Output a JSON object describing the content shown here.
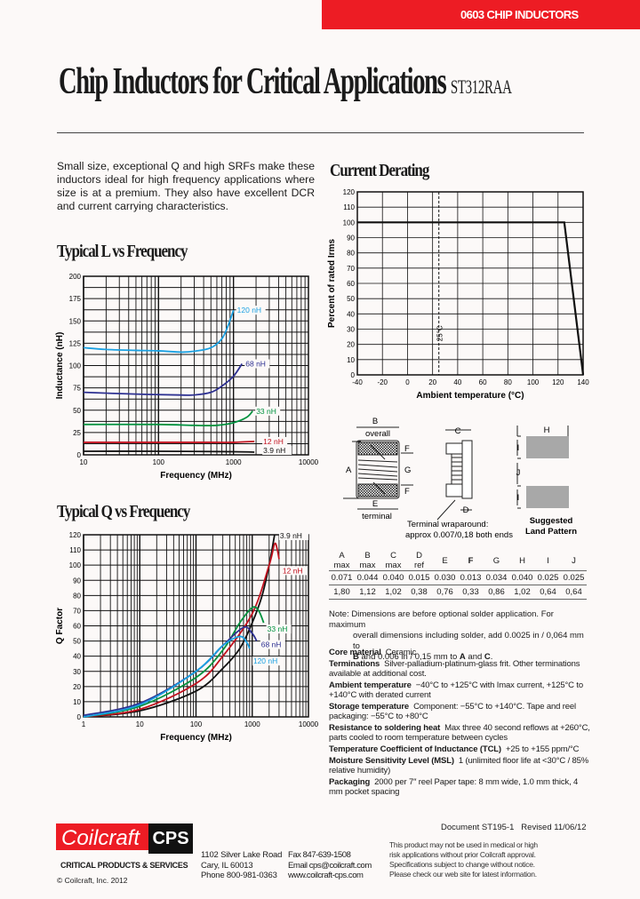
{
  "header": {
    "category": "0603 CHIP INDUCTORS",
    "title": "Chip Inductors for Critical Applications",
    "part_number": "ST312RAA"
  },
  "intro": "Small size, exceptional Q and high SRFs make these inductors ideal for high frequency applications where size is at a premium. They also have excellent DCR and current carrying characteristics.",
  "colors": {
    "brand_red": "#ed1c24",
    "black": "#111111"
  },
  "chart_data": [
    {
      "type": "line",
      "title": "Typical L vs Frequency",
      "xlabel": "Frequency (MHz)",
      "ylabel": "Inductance (nH)",
      "xscale": "log",
      "xlim": [
        10,
        10000
      ],
      "ylim": [
        0,
        200
      ],
      "xticks": [
        "10",
        "100",
        "1000",
        "10000"
      ],
      "yticks": [
        "0",
        "25",
        "50",
        "75",
        "100",
        "125",
        "150",
        "175",
        "200"
      ],
      "grid": true,
      "series": [
        {
          "name": "120 nH",
          "color": "#1ba1e2",
          "points": [
            [
              10,
              120
            ],
            [
              20,
              118
            ],
            [
              50,
              117
            ],
            [
              100,
              116.5
            ],
            [
              200,
              115
            ],
            [
              300,
              116
            ],
            [
              500,
              120
            ],
            [
              700,
              130
            ],
            [
              850,
              145
            ],
            [
              1000,
              162
            ]
          ]
        },
        {
          "name": "68 nH",
          "color": "#2e3192",
          "points": [
            [
              10,
              70
            ],
            [
              50,
              68
            ],
            [
              200,
              67
            ],
            [
              300,
              67
            ],
            [
              500,
              70
            ],
            [
              700,
              77
            ],
            [
              1000,
              88
            ],
            [
              1300,
              102
            ]
          ]
        },
        {
          "name": "33 nH",
          "color": "#00923f",
          "points": [
            [
              10,
              34
            ],
            [
              100,
              34
            ],
            [
              300,
              33
            ],
            [
              600,
              33
            ],
            [
              1000,
              36
            ],
            [
              1500,
              42
            ],
            [
              1800,
              49
            ]
          ]
        },
        {
          "name": "12 nH",
          "color": "#c1121f",
          "points": [
            [
              10,
              14
            ],
            [
              100,
              14
            ],
            [
              500,
              14
            ],
            [
              1000,
              14
            ],
            [
              1900,
              15
            ]
          ]
        },
        {
          "name": "3.9 nH",
          "color": "#111111",
          "points": [
            [
              10,
              4
            ],
            [
              100,
              4
            ],
            [
              1000,
              3.5
            ],
            [
              1900,
              3
            ]
          ]
        }
      ]
    },
    {
      "type": "line",
      "title": "Typical Q vs Frequency",
      "xlabel": "Frequency (MHz)",
      "ylabel": "Q Factor",
      "xscale": "log",
      "xlim": [
        1,
        10000
      ],
      "ylim": [
        0,
        120
      ],
      "xticks": [
        "1",
        "10",
        "100",
        "1000",
        "10000"
      ],
      "yticks": [
        "0",
        "10",
        "20",
        "30",
        "40",
        "50",
        "60",
        "70",
        "80",
        "90",
        "100",
        "110",
        "120"
      ],
      "grid": true,
      "series": [
        {
          "name": "3.9 nH",
          "color": "#111111",
          "points": [
            [
              1,
              0
            ],
            [
              10,
              4
            ],
            [
              100,
              17
            ],
            [
              300,
              32
            ],
            [
              600,
              45
            ],
            [
              1000,
              62
            ],
            [
              1500,
              80
            ],
            [
              2000,
              100
            ],
            [
              2500,
              120
            ]
          ]
        },
        {
          "name": "12 nH",
          "color": "#c1121f",
          "points": [
            [
              1,
              0
            ],
            [
              10,
              5
            ],
            [
              100,
              22
            ],
            [
              300,
              40
            ],
            [
              1000,
              68
            ],
            [
              2000,
              100
            ],
            [
              2500,
              114
            ],
            [
              2800,
              110
            ],
            [
              3000,
              104
            ]
          ]
        },
        {
          "name": "33 nH",
          "color": "#00923f",
          "points": [
            [
              1,
              0
            ],
            [
              10,
              7
            ],
            [
              100,
              26
            ],
            [
              300,
              44
            ],
            [
              600,
              62
            ],
            [
              1000,
              72
            ],
            [
              1300,
              70
            ],
            [
              1600,
              62
            ]
          ]
        },
        {
          "name": "68 nH",
          "color": "#2e3192",
          "points": [
            [
              1,
              1
            ],
            [
              10,
              9
            ],
            [
              100,
              30
            ],
            [
              300,
              47
            ],
            [
              700,
              59
            ],
            [
              1000,
              55
            ],
            [
              1200,
              50
            ]
          ]
        },
        {
          "name": "120 nH",
          "color": "#1ba1e2",
          "points": [
            [
              1,
              0
            ],
            [
              10,
              8
            ],
            [
              100,
              30
            ],
            [
              300,
              47
            ],
            [
              600,
              53
            ],
            [
              800,
              49
            ],
            [
              900,
              45
            ]
          ]
        }
      ]
    },
    {
      "type": "line",
      "title": "Current Derating",
      "xlabel": "Ambient temperature (°C)",
      "ylabel": "Percent of rated Irms",
      "xscale": "linear",
      "xlim": [
        -40,
        140
      ],
      "ylim": [
        0,
        120
      ],
      "xticks": [
        "-40",
        "-20",
        "0",
        "20",
        "40",
        "60",
        "80",
        "100",
        "120",
        "140"
      ],
      "yticks": [
        "0",
        "10",
        "20",
        "30",
        "40",
        "50",
        "60",
        "70",
        "80",
        "90",
        "100",
        "110",
        "120"
      ],
      "grid": true,
      "reference_line": {
        "x": 25,
        "label": "25°C",
        "style": "dashed"
      },
      "series": [
        {
          "color": "#111111",
          "points": [
            [
              -40,
              100
            ],
            [
              125,
              100
            ],
            [
              140,
              0
            ]
          ]
        }
      ]
    }
  ],
  "drawing": {
    "B": "B",
    "overall": "overall",
    "A": "A",
    "F": "F",
    "G": "G",
    "E": "E",
    "terminal": "terminal",
    "C": "C",
    "D": "D",
    "H": "H",
    "I": "I",
    "J": "J",
    "wrap_note_1": "Terminal wraparound:",
    "wrap_note_2": "approx 0.007/0,18 both ends",
    "land_1": "Suggested",
    "land_2": "Land Pattern"
  },
  "dimensions": {
    "headers": [
      [
        "A",
        "max"
      ],
      [
        "B",
        "max"
      ],
      [
        "C",
        "max"
      ],
      [
        "D",
        "ref"
      ],
      [
        "E",
        ""
      ],
      [
        "F",
        ""
      ],
      [
        "G",
        ""
      ],
      [
        "H",
        ""
      ],
      [
        "I",
        ""
      ],
      [
        "J",
        ""
      ]
    ],
    "rows": [
      [
        "0.071",
        "0.044",
        "0.040",
        "0.015",
        "0.030",
        "0.013",
        "0.034",
        "0.040",
        "0.025",
        "0.025"
      ],
      [
        "1,80",
        "1,12",
        "1,02",
        "0,38",
        "0,76",
        "0,33",
        "0,86",
        "1,02",
        "0,64",
        "0,64"
      ]
    ],
    "note_label": "Note:",
    "note_1": "Dimensions are before optional solder application. For maximum",
    "note_2": "overall dimensions including solder, add 0.0025 in / 0,064 mm to",
    "note_3b1": "B",
    "note_3a": " and 0.006 in / 0,15 mm to ",
    "note_3b2": "A",
    "note_3c": " and ",
    "note_3b3": "C",
    "note_3d": "."
  },
  "specs": [
    {
      "label": "Core material",
      "text": "Ceramic"
    },
    {
      "label": "Terminations",
      "text": "Silver-palladium-platinum-glass frit. Other terminations available at additional cost."
    },
    {
      "label": "Ambient temperature",
      "text": "−40°C to +125°C with Imax current, +125°C to +140°C with derated current"
    },
    {
      "label": "Storage temperature",
      "text": "Component: −55°C to +140°C. Tape and reel packaging: −55°C to +80°C"
    },
    {
      "label": "Resistance to soldering heat",
      "text": "Max three 40 second reflows at +260°C, parts cooled to room temperature between cycles"
    },
    {
      "label": "Temperature Coefficient of Inductance (TCL)",
      "text": "+25 to +155 ppm/°C"
    },
    {
      "label": "Moisture Sensitivity Level (MSL)",
      "text": "1 (unlimited floor life at <30°C / 85% relative humidity)"
    },
    {
      "label": "Packaging",
      "text": "2000 per 7″ reel Paper tape: 8 mm wide, 1.0 mm thick, 4 mm pocket spacing"
    }
  ],
  "footer": {
    "document": "Document ST195-1",
    "revised": "Revised 11/06/12",
    "logo_text": "Coilcraft",
    "logo_cps": "CPS",
    "tagline": "CRITICAL PRODUCTS & SERVICES",
    "copyright": "© Coilcraft, Inc. 2012",
    "address_1": "1102 Silver Lake Road",
    "address_2": "Cary, IL 60013",
    "phone": "Phone  800-981-0363",
    "fax": "Fax  847-639-1508",
    "email": "Email  cps@coilcraft.com",
    "web": "www.coilcraft-cps.com",
    "disclaimer": [
      "This product may not be used in medical or high",
      "risk applications without prior Coilcraft approval.",
      "Specifications subject to change without notice.",
      "Please check our web site for latest information."
    ]
  }
}
